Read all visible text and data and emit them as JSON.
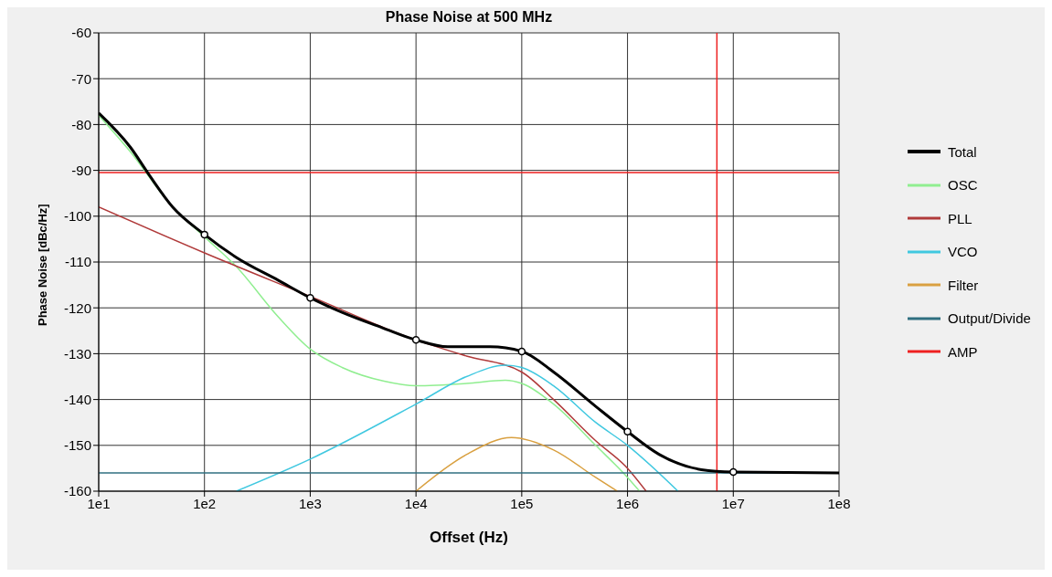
{
  "chart_data": {
    "type": "line",
    "title": "Phase Noise at 500 MHz",
    "xlabel": "Offset (Hz)",
    "ylabel": "Phase Noise [dBc/Hz]",
    "log": "x",
    "xlim": [
      10,
      100000000
    ],
    "xticks": [
      {
        "value": 10,
        "label": "1e1"
      },
      {
        "value": 100,
        "label": "1e2"
      },
      {
        "value": 1000,
        "label": "1e3"
      },
      {
        "value": 10000,
        "label": "1e4"
      },
      {
        "value": 100000,
        "label": "1e5"
      },
      {
        "value": 1000000,
        "label": "1e6"
      },
      {
        "value": 10000000,
        "label": "1e7"
      },
      {
        "value": 100000000,
        "label": "1e8"
      }
    ],
    "ylim": [
      -160,
      -60
    ],
    "yticks": [
      -160,
      -150,
      -140,
      -130,
      -120,
      -110,
      -100,
      -90,
      -80,
      -70,
      -60
    ],
    "grid": true,
    "legend": "right",
    "line_style": "solid",
    "series": [
      {
        "name": "Total",
        "color": "#000000",
        "x": [
          10,
          20,
          30,
          50,
          100,
          200,
          500,
          1000,
          2000,
          5000,
          10000,
          20000,
          50000,
          100000,
          200000,
          500000,
          1000000,
          2000000,
          5000000,
          10000000,
          100000000
        ],
        "values": [
          -77.5,
          -85,
          -91,
          -98,
          -104,
          -109,
          -114,
          -117.8,
          -121,
          -124.5,
          -127,
          -128.5,
          -128.5,
          -129.5,
          -134,
          -141.5,
          -147,
          -152,
          -155.3,
          -155.8,
          -156
        ]
      },
      {
        "name": "OSC",
        "color": "#90ee90",
        "x": [
          10,
          20,
          50,
          100,
          200,
          500,
          1000,
          2000,
          5000,
          10000,
          30000,
          70000,
          100000,
          200000,
          500000,
          1000000,
          1300000
        ],
        "values": [
          -78,
          -86,
          -98,
          -104.5,
          -111,
          -122,
          -129,
          -133,
          -136,
          -137,
          -136.5,
          -135.8,
          -136.5,
          -141,
          -150,
          -157,
          -160
        ]
      },
      {
        "name": "PLL",
        "color": "#b03a3a",
        "x": [
          10,
          100,
          1000,
          10000,
          30000,
          100000,
          200000,
          500000,
          1000000,
          1500000
        ],
        "values": [
          -98,
          -108,
          -117.5,
          -127,
          -130.5,
          -134,
          -140,
          -149,
          -155,
          -160
        ]
      },
      {
        "name": "VCO",
        "color": "#40c8e0",
        "x": [
          200,
          1000,
          10000,
          30000,
          70000,
          100000,
          200000,
          500000,
          1000000,
          3000000
        ],
        "values": [
          -160,
          -153,
          -141,
          -135,
          -132.5,
          -133,
          -137,
          -145,
          -150,
          -160
        ]
      },
      {
        "name": "Filter",
        "color": "#d9a040",
        "x": [
          10000,
          30000,
          80000,
          200000,
          500000,
          800000
        ],
        "values": [
          -160,
          -152,
          -148.3,
          -151,
          -157,
          -160
        ]
      },
      {
        "name": "Output/Divide",
        "color": "#2f6f80",
        "x": [
          10,
          100000000
        ],
        "values": [
          -156,
          -156
        ]
      },
      {
        "name": "AMP",
        "color": "#ee2020",
        "x": [
          7000000,
          7000000,
          7000000,
          10,
          100000000
        ],
        "values": [
          -160,
          -60,
          -90.5,
          -90.5,
          -90.5
        ]
      },
      {
        "type": "scatter",
        "color": "#000000",
        "marker": "circle",
        "x": [
          100,
          1000,
          10000,
          100000,
          1000000,
          10000000
        ],
        "values": [
          -104,
          -117.8,
          -127,
          -129.5,
          -147,
          -155.8
        ]
      }
    ]
  }
}
